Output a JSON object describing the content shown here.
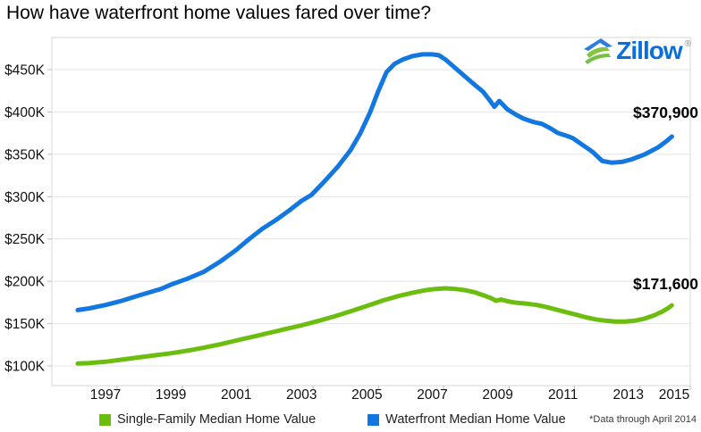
{
  "title": "How have waterfront home values fared over time?",
  "logo": {
    "brand": "Zillow",
    "registered": "®"
  },
  "annotations": {
    "waterfront_end_label": "$370,900",
    "single_family_end_label": "$171,600"
  },
  "footnote": "*Data through April 2014",
  "legend": [
    {
      "label": "Single-Family Median Home Value",
      "color": "#6cbe0e"
    },
    {
      "label": "Waterfront Median Home Value",
      "color": "#1277e0"
    }
  ],
  "colors": {
    "grid": "#e4e4e4",
    "plot_border": "#d7d7d7",
    "tick": "#bfbfbf",
    "axis_text": "#111111",
    "single_family_green": "#6cbe0e",
    "waterfront_blue": "#1277e0",
    "logo_blue": "#0a6fdd",
    "logo_icon_green": "#86c440"
  },
  "chart_data": {
    "type": "line",
    "title": "How have waterfront home values fared over time?",
    "xlabel": "",
    "ylabel": "",
    "grid": "horizontal",
    "legend_position": "bottom",
    "x_range": [
      1995.35,
      2015.4
    ],
    "y_range_thousands": [
      66,
      488
    ],
    "y_ticks_thousands": [
      100,
      150,
      200,
      250,
      300,
      350,
      400,
      450
    ],
    "y_tick_labels": [
      "$100K",
      "$150K",
      "$200K",
      "$250K",
      "$300K",
      "$350K",
      "$400K",
      "$450K"
    ],
    "x_ticks_years": [
      1997,
      1999,
      2001,
      2003,
      2005,
      2007,
      2009,
      2011,
      2013,
      2015
    ],
    "x_tick_labels": [
      "1997",
      "1999",
      "2001",
      "2003",
      "2005",
      "2007",
      "2009",
      "2011",
      "2013",
      "2015"
    ],
    "units": "USD thousands",
    "data_through": "April 2014",
    "series": [
      {
        "name": "Single-Family Median Home Value",
        "color": "#6cbe0e",
        "end_value_label": "$171,600",
        "end_value": 171600,
        "points": [
          [
            1996.15,
            103
          ],
          [
            1996.5,
            103.5
          ],
          [
            1997,
            105
          ],
          [
            1997.5,
            107.5
          ],
          [
            1998,
            110
          ],
          [
            1998.5,
            112.5
          ],
          [
            1999,
            115
          ],
          [
            1999.5,
            118
          ],
          [
            2000,
            121.5
          ],
          [
            2000.5,
            125.5
          ],
          [
            2001,
            130
          ],
          [
            2001.5,
            134.5
          ],
          [
            2002,
            139
          ],
          [
            2002.5,
            143.5
          ],
          [
            2003,
            148
          ],
          [
            2003.5,
            153
          ],
          [
            2004,
            158.5
          ],
          [
            2004.5,
            164.5
          ],
          [
            2005,
            171
          ],
          [
            2005.5,
            177.5
          ],
          [
            2006,
            183
          ],
          [
            2006.4,
            186.5
          ],
          [
            2006.8,
            189.5
          ],
          [
            2007.1,
            191
          ],
          [
            2007.4,
            191.7
          ],
          [
            2007.7,
            191
          ],
          [
            2008,
            189.5
          ],
          [
            2008.3,
            187
          ],
          [
            2008.6,
            183
          ],
          [
            2008.8,
            180
          ],
          [
            2008.95,
            177
          ],
          [
            2009.1,
            178.5
          ],
          [
            2009.35,
            176
          ],
          [
            2009.6,
            174.5
          ],
          [
            2009.9,
            173.5
          ],
          [
            2010.2,
            172
          ],
          [
            2010.5,
            169.5
          ],
          [
            2010.8,
            166.5
          ],
          [
            2011.1,
            163.5
          ],
          [
            2011.4,
            160.5
          ],
          [
            2011.7,
            157.5
          ],
          [
            2012,
            155
          ],
          [
            2012.3,
            153.5
          ],
          [
            2012.6,
            152.5
          ],
          [
            2012.9,
            152.5
          ],
          [
            2013.2,
            153.5
          ],
          [
            2013.5,
            156
          ],
          [
            2013.8,
            160
          ],
          [
            2014.05,
            164.5
          ],
          [
            2014.2,
            168
          ],
          [
            2014.33,
            171.6
          ]
        ]
      },
      {
        "name": "Waterfront Median Home Value",
        "color": "#1277e0",
        "end_value_label": "$370,900",
        "end_value": 370900,
        "points": [
          [
            1996.15,
            166
          ],
          [
            1996.5,
            168
          ],
          [
            1997,
            172
          ],
          [
            1997.5,
            177
          ],
          [
            1998,
            183
          ],
          [
            1998.35,
            187
          ],
          [
            1998.7,
            191
          ],
          [
            1999,
            196
          ],
          [
            1999.5,
            203
          ],
          [
            2000,
            211
          ],
          [
            2000.5,
            223
          ],
          [
            2001,
            237
          ],
          [
            2001.4,
            250
          ],
          [
            2001.8,
            262
          ],
          [
            2002.2,
            272
          ],
          [
            2002.6,
            283
          ],
          [
            2003,
            295
          ],
          [
            2003.3,
            302
          ],
          [
            2003.7,
            318
          ],
          [
            2004.1,
            335
          ],
          [
            2004.5,
            355
          ],
          [
            2004.8,
            375
          ],
          [
            2005.1,
            400
          ],
          [
            2005.35,
            425
          ],
          [
            2005.6,
            447
          ],
          [
            2005.85,
            457
          ],
          [
            2006.1,
            462
          ],
          [
            2006.4,
            466
          ],
          [
            2006.7,
            468
          ],
          [
            2007,
            468
          ],
          [
            2007.2,
            467
          ],
          [
            2007.4,
            462
          ],
          [
            2007.7,
            452
          ],
          [
            2008,
            442
          ],
          [
            2008.3,
            432
          ],
          [
            2008.55,
            424
          ],
          [
            2008.75,
            414
          ],
          [
            2008.9,
            406
          ],
          [
            2009.05,
            413
          ],
          [
            2009.3,
            403
          ],
          [
            2009.55,
            397
          ],
          [
            2009.8,
            392
          ],
          [
            2010.1,
            388
          ],
          [
            2010.35,
            386
          ],
          [
            2010.6,
            381
          ],
          [
            2010.85,
            375
          ],
          [
            2011.1,
            372
          ],
          [
            2011.3,
            369
          ],
          [
            2011.6,
            361
          ],
          [
            2011.9,
            353
          ],
          [
            2012.2,
            342
          ],
          [
            2012.5,
            340
          ],
          [
            2012.8,
            341
          ],
          [
            2013.1,
            344
          ],
          [
            2013.5,
            350
          ],
          [
            2013.9,
            358
          ],
          [
            2014.15,
            365
          ],
          [
            2014.33,
            370.9
          ]
        ]
      }
    ]
  }
}
